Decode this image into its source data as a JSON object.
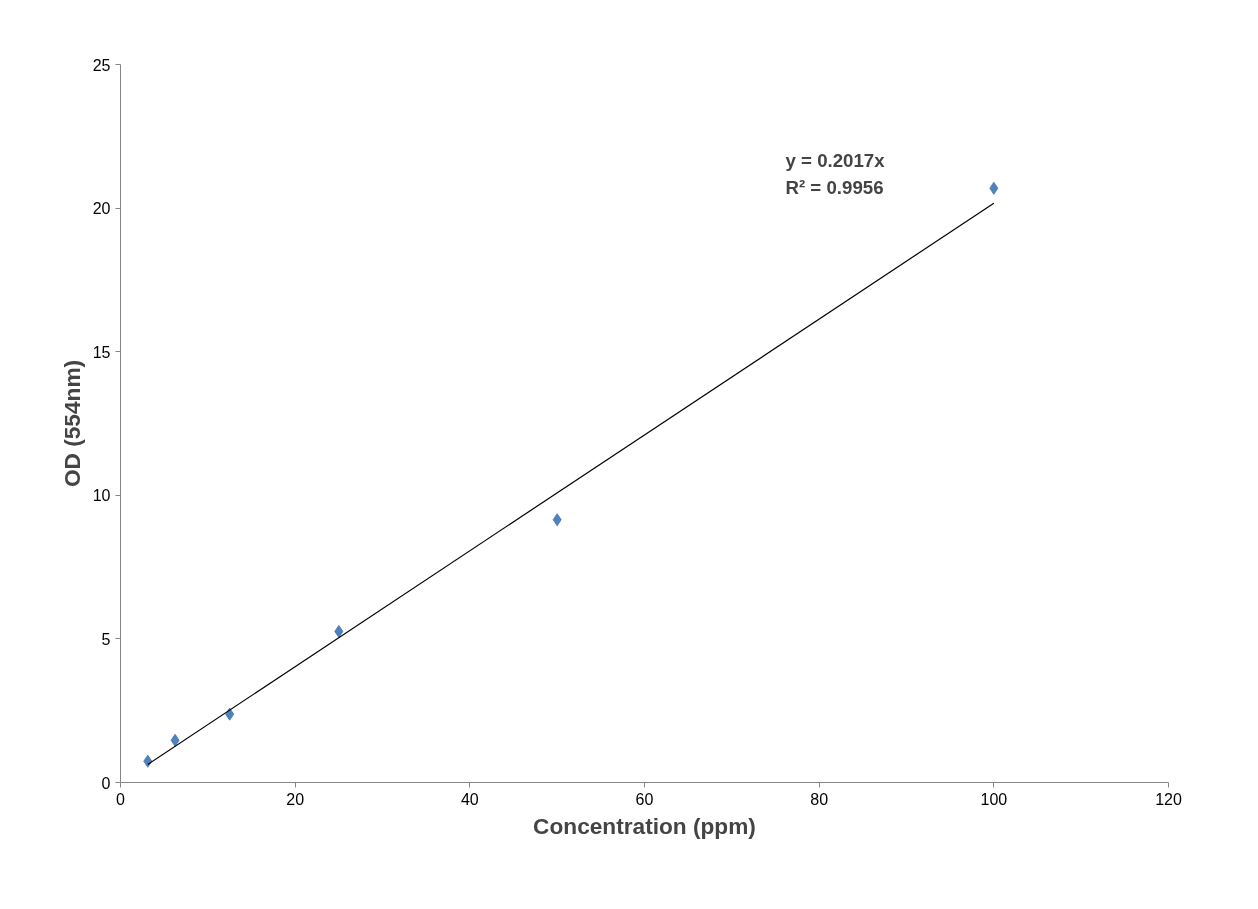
{
  "chart_data": {
    "type": "scatter",
    "xlabel": "Concentration (ppm)",
    "ylabel": "OD (554nm)",
    "xlim": [
      0,
      120
    ],
    "ylim": [
      0,
      25
    ],
    "xticks": [
      0,
      20,
      40,
      60,
      80,
      100,
      120
    ],
    "yticks": [
      0,
      5,
      10,
      15,
      20,
      25
    ],
    "grid": false,
    "series": [
      {
        "marker": "diamond",
        "color": "#4f81bd",
        "x": [
          3.125,
          6.25,
          12.5,
          25,
          50,
          100
        ],
        "values": [
          0.74,
          1.47,
          2.38,
          5.26,
          9.15,
          20.69
        ]
      },
      {
        "type": "line",
        "color": "#000000",
        "x": [
          3.125,
          100
        ],
        "values": [
          0.63,
          20.17
        ],
        "line_style": "solid"
      }
    ],
    "annotations": [
      "y = 0.2017x",
      "R² = 0.9956"
    ]
  }
}
